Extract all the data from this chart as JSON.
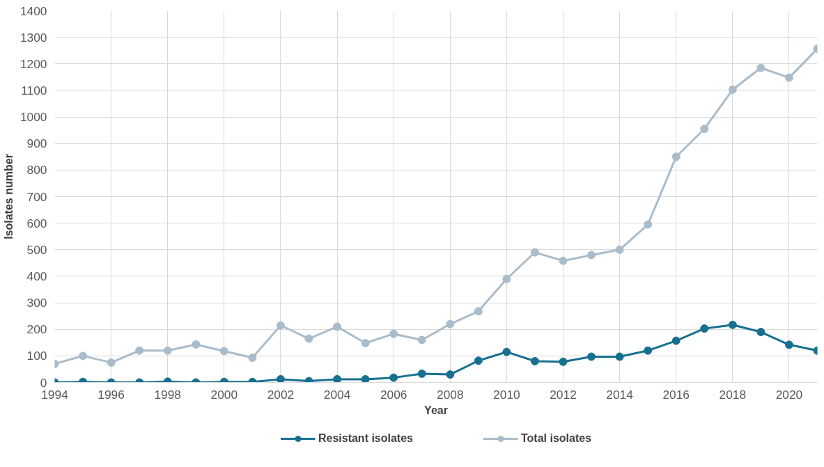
{
  "chart_data": {
    "type": "line",
    "xlabel": "Year",
    "ylabel": "Isolates number",
    "x": [
      1994,
      1995,
      1996,
      1997,
      1998,
      1999,
      2000,
      2001,
      2002,
      2003,
      2004,
      2005,
      2006,
      2007,
      2008,
      2009,
      2010,
      2011,
      2012,
      2013,
      2014,
      2015,
      2016,
      2017,
      2018,
      2019,
      2020,
      2021
    ],
    "series": [
      {
        "name": "Resistant isolates",
        "color": "#17708f",
        "values": [
          0,
          2,
          0,
          0,
          3,
          0,
          2,
          2,
          12,
          5,
          12,
          12,
          18,
          33,
          30,
          82,
          115,
          80,
          78,
          97,
          97,
          120,
          157,
          203,
          217,
          190,
          142,
          120
        ]
      },
      {
        "name": "Total isolates",
        "color": "#a9bccb",
        "values": [
          70,
          100,
          75,
          120,
          120,
          143,
          118,
          93,
          215,
          165,
          210,
          148,
          183,
          160,
          220,
          268,
          390,
          490,
          458,
          480,
          500,
          595,
          850,
          955,
          1103,
          1185,
          1148,
          1257
        ]
      }
    ],
    "xlim": [
      1994,
      2021
    ],
    "xticks": [
      1994,
      1996,
      1998,
      2000,
      2002,
      2004,
      2006,
      2008,
      2010,
      2012,
      2014,
      2016,
      2018,
      2020
    ],
    "ylim": [
      0,
      1400
    ],
    "yticks": [
      0,
      100,
      200,
      300,
      400,
      500,
      600,
      700,
      800,
      900,
      1000,
      1100,
      1200,
      1300,
      1400
    ],
    "grid": true,
    "legend": "bottom",
    "marker": "circle",
    "line_style": "solid"
  }
}
